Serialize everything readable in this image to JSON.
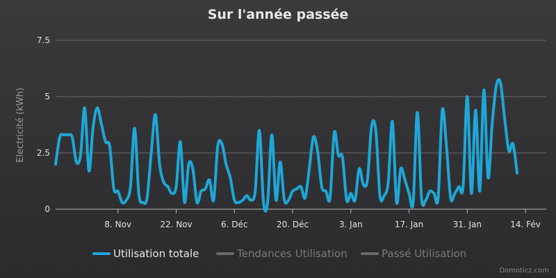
{
  "chart_data": {
    "type": "line",
    "title": "Sur l'année passée",
    "ylabel": "Electricité (kWh)",
    "xlabel": "",
    "ylim": [
      0,
      7.5
    ],
    "yticks": [
      0,
      2.5,
      5,
      7.5
    ],
    "ytick_labels": [
      "0",
      "2.5",
      "5",
      "7.5"
    ],
    "xlim": [
      "2015-10-24",
      "2016-02-19"
    ],
    "xticks": [
      {
        "date": "2015-11-08",
        "label": "8. Nov"
      },
      {
        "date": "2015-11-22",
        "label": "22. Nov"
      },
      {
        "date": "2015-12-06",
        "label": "6. Déc"
      },
      {
        "date": "2015-12-20",
        "label": "20. Déc"
      },
      {
        "date": "2016-01-03",
        "label": "3. Jan"
      },
      {
        "date": "2016-01-17",
        "label": "17. Jan"
      },
      {
        "date": "2016-01-31",
        "label": "31. Jan"
      },
      {
        "date": "2016-02-14",
        "label": "14. Fév"
      }
    ],
    "grid": true,
    "legend_position": "bottom",
    "series": [
      {
        "name": "Utilisation totale",
        "color": "#1ea7d8",
        "visible": true,
        "points": [
          [
            "2015-10-24",
            2.0
          ],
          [
            "2015-10-25",
            3.2
          ],
          [
            "2015-10-26",
            3.3
          ],
          [
            "2015-10-27",
            3.3
          ],
          [
            "2015-10-28",
            3.2
          ],
          [
            "2015-10-29",
            2.1
          ],
          [
            "2015-10-30",
            2.4
          ],
          [
            "2015-10-31",
            4.5
          ],
          [
            "2015-11-01",
            1.7
          ],
          [
            "2015-11-02",
            3.6
          ],
          [
            "2015-11-03",
            4.5
          ],
          [
            "2015-11-04",
            3.8
          ],
          [
            "2015-11-05",
            3.0
          ],
          [
            "2015-11-06",
            2.8
          ],
          [
            "2015-11-07",
            0.9
          ],
          [
            "2015-11-08",
            0.8
          ],
          [
            "2015-11-09",
            0.3
          ],
          [
            "2015-11-10",
            0.4
          ],
          [
            "2015-11-11",
            1.0
          ],
          [
            "2015-11-12",
            3.6
          ],
          [
            "2015-11-13",
            0.7
          ],
          [
            "2015-11-14",
            0.3
          ],
          [
            "2015-11-15",
            0.5
          ],
          [
            "2015-11-16",
            2.5
          ],
          [
            "2015-11-17",
            4.2
          ],
          [
            "2015-11-18",
            2.0
          ],
          [
            "2015-11-19",
            1.2
          ],
          [
            "2015-11-20",
            1.0
          ],
          [
            "2015-11-21",
            0.7
          ],
          [
            "2015-11-22",
            1.0
          ],
          [
            "2015-11-23",
            3.0
          ],
          [
            "2015-11-24",
            0.3
          ],
          [
            "2015-11-25",
            2.0
          ],
          [
            "2015-11-26",
            1.8
          ],
          [
            "2015-11-27",
            0.3
          ],
          [
            "2015-11-28",
            0.8
          ],
          [
            "2015-11-29",
            0.9
          ],
          [
            "2015-11-30",
            1.3
          ],
          [
            "2015-12-01",
            0.4
          ],
          [
            "2015-12-02",
            2.8
          ],
          [
            "2015-12-03",
            2.9
          ],
          [
            "2015-12-04",
            2.0
          ],
          [
            "2015-12-05",
            1.4
          ],
          [
            "2015-12-06",
            0.4
          ],
          [
            "2015-12-07",
            0.3
          ],
          [
            "2015-12-08",
            0.4
          ],
          [
            "2015-12-09",
            0.6
          ],
          [
            "2015-12-10",
            0.4
          ],
          [
            "2015-12-11",
            0.8
          ],
          [
            "2015-12-12",
            3.5
          ],
          [
            "2015-12-13",
            0.3
          ],
          [
            "2015-12-14",
            0.3
          ],
          [
            "2015-12-15",
            3.3
          ],
          [
            "2015-12-16",
            0.4
          ],
          [
            "2015-12-17",
            2.1
          ],
          [
            "2015-12-18",
            0.4
          ],
          [
            "2015-12-19",
            0.4
          ],
          [
            "2015-12-20",
            0.8
          ],
          [
            "2015-12-21",
            0.9
          ],
          [
            "2015-12-22",
            1.0
          ],
          [
            "2015-12-23",
            0.5
          ],
          [
            "2015-12-24",
            1.8
          ],
          [
            "2015-12-25",
            3.2
          ],
          [
            "2015-12-26",
            2.6
          ],
          [
            "2015-12-27",
            1.0
          ],
          [
            "2015-12-28",
            0.8
          ],
          [
            "2015-12-29",
            0.5
          ],
          [
            "2015-12-30",
            3.4
          ],
          [
            "2015-12-31",
            2.4
          ],
          [
            "2016-01-01",
            2.3
          ],
          [
            "2016-01-02",
            0.4
          ],
          [
            "2016-01-03",
            0.7
          ],
          [
            "2016-01-04",
            0.4
          ],
          [
            "2016-01-05",
            1.8
          ],
          [
            "2016-01-06",
            1.1
          ],
          [
            "2016-01-07",
            1.3
          ],
          [
            "2016-01-08",
            3.7
          ],
          [
            "2016-01-09",
            3.5
          ],
          [
            "2016-01-10",
            0.6
          ],
          [
            "2016-01-11",
            0.6
          ],
          [
            "2016-01-12",
            1.2
          ],
          [
            "2016-01-13",
            3.9
          ],
          [
            "2016-01-14",
            0.3
          ],
          [
            "2016-01-15",
            1.8
          ],
          [
            "2016-01-16",
            1.3
          ],
          [
            "2016-01-17",
            0.7
          ],
          [
            "2016-01-18",
            0.3
          ],
          [
            "2016-01-19",
            4.3
          ],
          [
            "2016-01-20",
            0.5
          ],
          [
            "2016-01-21",
            0.4
          ],
          [
            "2016-01-22",
            0.8
          ],
          [
            "2016-01-23",
            0.7
          ],
          [
            "2016-01-24",
            0.5
          ],
          [
            "2016-01-25",
            4.4
          ],
          [
            "2016-01-26",
            2.8
          ],
          [
            "2016-01-27",
            0.5
          ],
          [
            "2016-01-28",
            0.7
          ],
          [
            "2016-01-29",
            1.0
          ],
          [
            "2016-01-30",
            1.0
          ],
          [
            "2016-01-31",
            5.0
          ],
          [
            "2016-02-01",
            0.7
          ],
          [
            "2016-02-02",
            4.4
          ],
          [
            "2016-02-03",
            0.8
          ],
          [
            "2016-02-04",
            5.3
          ],
          [
            "2016-02-05",
            1.4
          ],
          [
            "2016-02-06",
            3.8
          ],
          [
            "2016-02-07",
            5.5
          ],
          [
            "2016-02-08",
            5.6
          ],
          [
            "2016-02-09",
            4.0
          ],
          [
            "2016-02-10",
            2.6
          ],
          [
            "2016-02-11",
            2.9
          ],
          [
            "2016-02-12",
            1.6
          ]
        ]
      },
      {
        "name": "Tendances Utilisation",
        "color": "#6b6b6b",
        "visible": false,
        "points": []
      },
      {
        "name": "Passé Utilisation",
        "color": "#6b6b6b",
        "visible": false,
        "points": []
      }
    ]
  },
  "legend": {
    "items": [
      {
        "label": "Utilisation totale",
        "color": "#1ea7d8",
        "text_color": "#e8e8e8"
      },
      {
        "label": "Tendances Utilisation",
        "color": "#6b6b6b",
        "text_color": "#7a7a7a"
      },
      {
        "label": "Passé Utilisation",
        "color": "#6b6b6b",
        "text_color": "#7a7a7a"
      }
    ]
  },
  "credits": "Domoticz.com"
}
